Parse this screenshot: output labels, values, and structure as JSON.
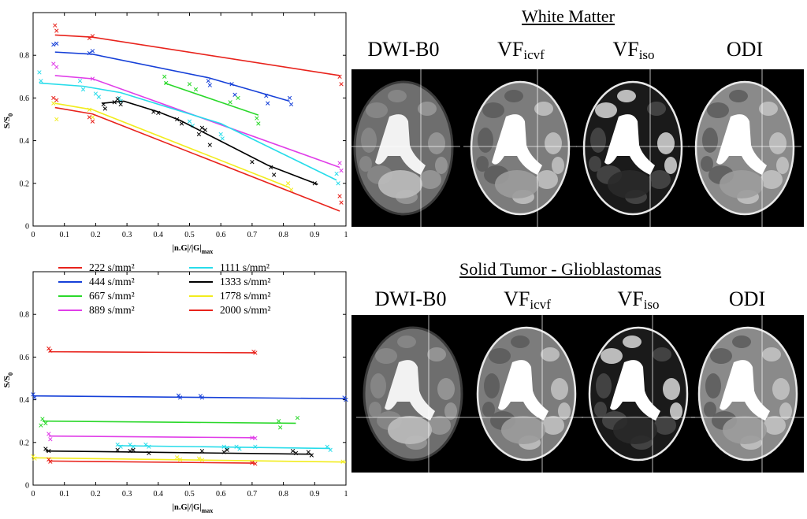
{
  "figure": {
    "panel_titles": [
      "White Matter",
      "Solid Tumor - Glioblastomas"
    ],
    "column_labels": [
      {
        "main": "DWI-B0",
        "sub": ""
      },
      {
        "main": "VF",
        "sub": "icvf"
      },
      {
        "main": "VF",
        "sub": "iso"
      },
      {
        "main": "ODI",
        "sub": ""
      }
    ],
    "legend": [
      {
        "label": "222 s/mm²",
        "color": "#e8231c"
      },
      {
        "label": "444 s/mm²",
        "color": "#1640d8"
      },
      {
        "label": "667 s/mm²",
        "color": "#2bd82b"
      },
      {
        "label": "889 s/mm²",
        "color": "#e03ee8"
      },
      {
        "label": "1111 s/mm²",
        "color": "#27dcea"
      },
      {
        "label": "1333 s/mm²",
        "color": "#000000"
      },
      {
        "label": "1778 s/mm²",
        "color": "#f2ec1d"
      },
      {
        "label": "2000 s/mm²",
        "color": "#e8231c"
      }
    ]
  },
  "chart_data": [
    {
      "type": "line",
      "title": "",
      "xlabel": "|n.G|/|G|",
      "xlabel_sub": "max",
      "ylabel": "S/S",
      "ylabel_sub": "0",
      "xlim": [
        0,
        1
      ],
      "ylim": [
        0,
        1
      ],
      "xticks": [
        0,
        0.1,
        0.2,
        0.3,
        0.4,
        0.5,
        0.6,
        0.7,
        0.8,
        0.9,
        1
      ],
      "yticks": [
        0,
        0.2,
        0.4,
        0.6,
        0.8
      ],
      "xtick_labels": [
        "0",
        "0.1",
        "0.2",
        "0.3",
        "0.4",
        "0.5",
        "0.6",
        "0.7",
        "0.8",
        "0.9",
        "1"
      ],
      "ytick_labels": [
        "0",
        "0.2",
        "0.4",
        "0.6",
        "0.8"
      ],
      "grid": false,
      "series": [
        {
          "name": "222 s/mm²",
          "color": "#e8231c",
          "fit_x": [
            0.07,
            0.19,
            0.98
          ],
          "fit_y": [
            0.895,
            0.885,
            0.705
          ],
          "pts_x": [
            0.07,
            0.075,
            0.18,
            0.19,
            0.98,
            0.985
          ],
          "pts_y": [
            0.94,
            0.915,
            0.88,
            0.89,
            0.7,
            0.665
          ]
        },
        {
          "name": "444 s/mm²",
          "color": "#1640d8",
          "fit_x": [
            0.07,
            0.19,
            0.56,
            0.82
          ],
          "fit_y": [
            0.815,
            0.805,
            0.695,
            0.585
          ],
          "pts_x": [
            0.065,
            0.075,
            0.18,
            0.19,
            0.56,
            0.565,
            0.635,
            0.645,
            0.745,
            0.75,
            0.82,
            0.825
          ],
          "pts_y": [
            0.85,
            0.855,
            0.81,
            0.82,
            0.68,
            0.66,
            0.665,
            0.615,
            0.61,
            0.575,
            0.6,
            0.57
          ]
        },
        {
          "name": "667 s/mm²",
          "color": "#2bd82b",
          "fit_x": [
            0.42,
            0.72
          ],
          "fit_y": [
            0.67,
            0.52
          ],
          "pts_x": [
            0.42,
            0.425,
            0.5,
            0.52,
            0.63,
            0.655,
            0.715,
            0.72
          ],
          "pts_y": [
            0.7,
            0.67,
            0.665,
            0.64,
            0.58,
            0.6,
            0.505,
            0.48
          ]
        },
        {
          "name": "889 s/mm²",
          "color": "#e03ee8",
          "fit_x": [
            0.07,
            0.19,
            0.98
          ],
          "fit_y": [
            0.705,
            0.69,
            0.275
          ],
          "pts_x": [
            0.065,
            0.075,
            0.19,
            0.98,
            0.985
          ],
          "pts_y": [
            0.76,
            0.745,
            0.69,
            0.295,
            0.26
          ]
        },
        {
          "name": "1111 s/mm²",
          "color": "#27dcea",
          "fit_x": [
            0.02,
            0.16,
            0.28,
            0.6,
            0.97
          ],
          "fit_y": [
            0.67,
            0.655,
            0.625,
            0.48,
            0.215
          ],
          "pts_x": [
            0.02,
            0.025,
            0.15,
            0.16,
            0.2,
            0.21,
            0.275,
            0.28,
            0.5,
            0.51,
            0.6,
            0.605,
            0.97,
            0.975
          ],
          "pts_y": [
            0.72,
            0.68,
            0.68,
            0.64,
            0.62,
            0.605,
            0.6,
            0.585,
            0.49,
            0.47,
            0.43,
            0.41,
            0.245,
            0.2
          ]
        },
        {
          "name": "1333 s/mm²",
          "color": "#000000",
          "fit_x": [
            0.22,
            0.29,
            0.4,
            0.47,
            0.55,
            0.75,
            0.91
          ],
          "fit_y": [
            0.575,
            0.585,
            0.535,
            0.495,
            0.435,
            0.285,
            0.195
          ],
          "pts_x": [
            0.225,
            0.23,
            0.26,
            0.27,
            0.28,
            0.385,
            0.4,
            0.46,
            0.475,
            0.53,
            0.54,
            0.55,
            0.565,
            0.7,
            0.76,
            0.77,
            0.9
          ],
          "pts_y": [
            0.57,
            0.55,
            0.58,
            0.595,
            0.57,
            0.535,
            0.53,
            0.5,
            0.48,
            0.43,
            0.46,
            0.45,
            0.38,
            0.3,
            0.275,
            0.24,
            0.2
          ]
        },
        {
          "name": "1778 s/mm²",
          "color": "#f2ec1d",
          "fit_x": [
            0.07,
            0.19,
            0.82
          ],
          "fit_y": [
            0.575,
            0.545,
            0.18
          ],
          "pts_x": [
            0.065,
            0.075,
            0.18,
            0.19,
            0.815,
            0.825
          ],
          "pts_y": [
            0.575,
            0.5,
            0.545,
            0.51,
            0.2,
            0.17
          ]
        },
        {
          "name": "2000 s/mm²",
          "color": "#e8231c",
          "fit_x": [
            0.07,
            0.19,
            0.98
          ],
          "fit_y": [
            0.555,
            0.525,
            0.07
          ],
          "pts_x": [
            0.065,
            0.075,
            0.18,
            0.19,
            0.98,
            0.985
          ],
          "pts_y": [
            0.6,
            0.59,
            0.51,
            0.49,
            0.14,
            0.11
          ]
        }
      ]
    },
    {
      "type": "line",
      "title": "",
      "xlabel": "|n.G|/|G|",
      "xlabel_sub": "max",
      "ylabel": "S/S",
      "ylabel_sub": "0",
      "xlim": [
        0,
        1
      ],
      "ylim": [
        0,
        1
      ],
      "xticks": [
        0,
        0.1,
        0.2,
        0.3,
        0.4,
        0.5,
        0.6,
        0.7,
        0.8,
        0.9,
        1
      ],
      "yticks": [
        0,
        0.2,
        0.4,
        0.6,
        0.8
      ],
      "xtick_labels": [
        "0",
        "0.1",
        "0.2",
        "0.3",
        "0.4",
        "0.5",
        "0.6",
        "0.7",
        "0.8",
        "0.9",
        "1"
      ],
      "ytick_labels": [
        "0",
        "0.2",
        "0.4",
        "0.6",
        "0.8"
      ],
      "grid": false,
      "series": [
        {
          "name": "222 s/mm²",
          "color": "#e8231c",
          "fit_x": [
            0.05,
            0.71
          ],
          "fit_y": [
            0.625,
            0.62
          ],
          "pts_x": [
            0.05,
            0.055,
            0.705,
            0.71
          ],
          "pts_y": [
            0.64,
            0.63,
            0.625,
            0.62
          ]
        },
        {
          "name": "444 s/mm²",
          "color": "#1640d8",
          "fit_x": [
            0.0,
            1.0
          ],
          "fit_y": [
            0.418,
            0.405
          ],
          "pts_x": [
            0.0,
            0.005,
            0.465,
            0.47,
            0.535,
            0.54,
            0.995,
            1.0
          ],
          "pts_y": [
            0.425,
            0.41,
            0.42,
            0.41,
            0.418,
            0.41,
            0.41,
            0.4
          ]
        },
        {
          "name": "667 s/mm²",
          "color": "#2bd82b",
          "fit_x": [
            0.03,
            0.84
          ],
          "fit_y": [
            0.3,
            0.29
          ],
          "pts_x": [
            0.025,
            0.03,
            0.04,
            0.785,
            0.79,
            0.845
          ],
          "pts_y": [
            0.28,
            0.31,
            0.29,
            0.3,
            0.27,
            0.315
          ]
        },
        {
          "name": "889 s/mm²",
          "color": "#e03ee8",
          "fit_x": [
            0.05,
            0.71
          ],
          "fit_y": [
            0.23,
            0.222
          ],
          "pts_x": [
            0.05,
            0.055,
            0.7,
            0.71
          ],
          "pts_y": [
            0.24,
            0.215,
            0.222,
            0.22
          ]
        },
        {
          "name": "1111 s/mm²",
          "color": "#27dcea",
          "fit_x": [
            0.27,
            0.95
          ],
          "fit_y": [
            0.185,
            0.172
          ],
          "pts_x": [
            0.27,
            0.28,
            0.31,
            0.32,
            0.36,
            0.37,
            0.61,
            0.62,
            0.65,
            0.66,
            0.71,
            0.94,
            0.95
          ],
          "pts_y": [
            0.19,
            0.18,
            0.19,
            0.18,
            0.19,
            0.18,
            0.18,
            0.175,
            0.18,
            0.17,
            0.18,
            0.18,
            0.165
          ]
        },
        {
          "name": "1333 s/mm²",
          "color": "#000000",
          "fit_x": [
            0.04,
            0.89
          ],
          "fit_y": [
            0.16,
            0.145
          ],
          "pts_x": [
            0.04,
            0.05,
            0.27,
            0.31,
            0.32,
            0.37,
            0.54,
            0.61,
            0.62,
            0.83,
            0.84,
            0.88,
            0.89
          ],
          "pts_y": [
            0.17,
            0.16,
            0.165,
            0.16,
            0.165,
            0.15,
            0.16,
            0.155,
            0.165,
            0.16,
            0.15,
            0.155,
            0.14
          ]
        },
        {
          "name": "1778 s/mm²",
          "color": "#f2ec1d",
          "fit_x": [
            0.0,
            1.0
          ],
          "fit_y": [
            0.128,
            0.108
          ],
          "pts_x": [
            0.0,
            0.005,
            0.46,
            0.47,
            0.53,
            0.54,
            0.99
          ],
          "pts_y": [
            0.135,
            0.125,
            0.13,
            0.12,
            0.125,
            0.118,
            0.11
          ]
        },
        {
          "name": "2000 s/mm²",
          "color": "#e8231c",
          "fit_x": [
            0.05,
            0.71
          ],
          "fit_y": [
            0.113,
            0.103
          ],
          "pts_x": [
            0.05,
            0.055,
            0.7,
            0.71
          ],
          "pts_y": [
            0.12,
            0.11,
            0.105,
            0.1
          ]
        }
      ]
    }
  ]
}
